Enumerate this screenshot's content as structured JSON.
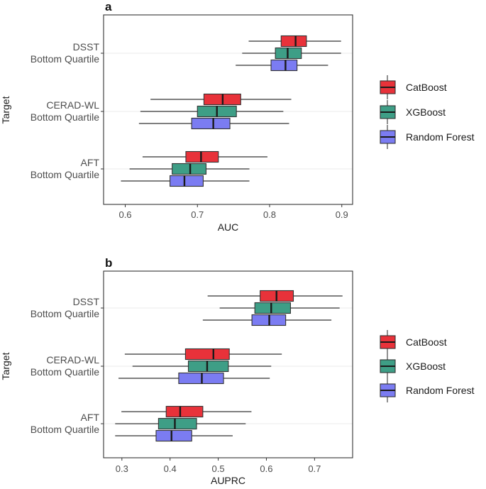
{
  "chart_data": [
    {
      "panel": "a",
      "type": "boxplot",
      "orientation": "horizontal",
      "xlabel": "AUC",
      "ylabel": "Target",
      "xlim": [
        0.57,
        0.915
      ],
      "xticks": [
        0.6,
        0.7,
        0.8,
        0.9
      ],
      "xtick_labels": [
        "0.6",
        "0.7",
        "0.8",
        "0.9"
      ],
      "categories": [
        {
          "line1": "DSST",
          "line2": "Bottom Quartile"
        },
        {
          "line1": "CERAD-WL",
          "line2": "Bottom Quartile"
        },
        {
          "line1": "AFT",
          "line2": "Bottom Quartile"
        }
      ],
      "series": [
        {
          "name": "CatBoost",
          "color": "#e8323a",
          "boxes": [
            {
              "min": 0.771,
              "q1": 0.816,
              "median": 0.836,
              "q3": 0.851,
              "max": 0.899
            },
            {
              "min": 0.635,
              "q1": 0.709,
              "median": 0.735,
              "q3": 0.76,
              "max": 0.83
            },
            {
              "min": 0.624,
              "q1": 0.684,
              "median": 0.705,
              "q3": 0.729,
              "max": 0.797
            }
          ]
        },
        {
          "name": "XGBoost",
          "color": "#3e9e86",
          "boxes": [
            {
              "min": 0.762,
              "q1": 0.808,
              "median": 0.825,
              "q3": 0.844,
              "max": 0.899
            },
            {
              "min": 0.621,
              "q1": 0.7,
              "median": 0.727,
              "q3": 0.754,
              "max": 0.819
            },
            {
              "min": 0.606,
              "q1": 0.665,
              "median": 0.69,
              "q3": 0.712,
              "max": 0.772
            }
          ]
        },
        {
          "name": "Random Forest",
          "color": "#7b7cf2",
          "boxes": [
            {
              "min": 0.753,
              "q1": 0.802,
              "median": 0.822,
              "q3": 0.838,
              "max": 0.881
            },
            {
              "min": 0.619,
              "q1": 0.692,
              "median": 0.722,
              "q3": 0.745,
              "max": 0.827
            },
            {
              "min": 0.594,
              "q1": 0.662,
              "median": 0.682,
              "q3": 0.708,
              "max": 0.772
            }
          ]
        }
      ]
    },
    {
      "panel": "b",
      "type": "boxplot",
      "orientation": "horizontal",
      "xlabel": "AUPRC",
      "ylabel": "Target",
      "xlim": [
        0.262,
        0.779
      ],
      "xticks": [
        0.3,
        0.4,
        0.5,
        0.6,
        0.7
      ],
      "xtick_labels": [
        "0.3",
        "0.4",
        "0.5",
        "0.6",
        "0.7"
      ],
      "categories": [
        {
          "line1": "DSST",
          "line2": "Bottom Quartile"
        },
        {
          "line1": "CERAD-WL",
          "line2": "Bottom Quartile"
        },
        {
          "line1": "AFT",
          "line2": "Bottom Quartile"
        }
      ],
      "series": [
        {
          "name": "CatBoost",
          "color": "#e8323a",
          "boxes": [
            {
              "min": 0.478,
              "q1": 0.587,
              "median": 0.621,
              "q3": 0.656,
              "max": 0.758
            },
            {
              "min": 0.306,
              "q1": 0.432,
              "median": 0.49,
              "q3": 0.523,
              "max": 0.632
            },
            {
              "min": 0.299,
              "q1": 0.392,
              "median": 0.421,
              "q3": 0.468,
              "max": 0.569
            }
          ]
        },
        {
          "name": "XGBoost",
          "color": "#3e9e86",
          "boxes": [
            {
              "min": 0.503,
              "q1": 0.576,
              "median": 0.61,
              "q3": 0.65,
              "max": 0.752
            },
            {
              "min": 0.322,
              "q1": 0.438,
              "median": 0.477,
              "q3": 0.521,
              "max": 0.61
            },
            {
              "min": 0.286,
              "q1": 0.376,
              "median": 0.41,
              "q3": 0.455,
              "max": 0.557
            }
          ]
        },
        {
          "name": "Random Forest",
          "color": "#7b7cf2",
          "boxes": [
            {
              "min": 0.468,
              "q1": 0.57,
              "median": 0.606,
              "q3": 0.64,
              "max": 0.735
            },
            {
              "min": 0.293,
              "q1": 0.418,
              "median": 0.466,
              "q3": 0.511,
              "max": 0.607
            },
            {
              "min": 0.286,
              "q1": 0.371,
              "median": 0.403,
              "q3": 0.445,
              "max": 0.53
            }
          ]
        }
      ]
    }
  ]
}
